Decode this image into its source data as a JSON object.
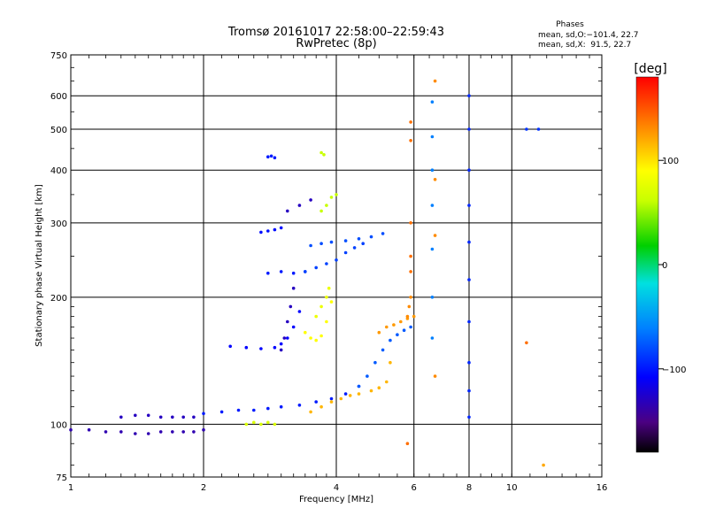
{
  "chart_data": {
    "type": "scatter",
    "title_line1": "Tromsø 20161017 22:58:00–22:59:43",
    "title_line2": "RwPretec (8p)",
    "xlabel": "Frequency [MHz]",
    "ylabel": "Stationary phase Virtual Height [km]",
    "x_scale": "log2",
    "y_scale": "log",
    "xlim": [
      1,
      16
    ],
    "ylim": [
      75,
      750
    ],
    "x_ticks": [
      1,
      2,
      4,
      6,
      8,
      10,
      16
    ],
    "x_tick_labels": [
      "1",
      "2",
      "4",
      "6",
      "8",
      "10",
      "16"
    ],
    "y_ticks": [
      75,
      100,
      200,
      300,
      400,
      500,
      600,
      750
    ],
    "y_tick_labels": [
      "75",
      "100",
      "200",
      "300",
      "400",
      "500",
      "600",
      "750"
    ],
    "grid": true,
    "legend": {
      "title": "Phases",
      "line1": "mean, sd,O:−101.4, 22.7",
      "line2": "mean, sd,X:  91.5, 22.7"
    },
    "colorbar": {
      "label": "[deg]",
      "range": [
        -180,
        180
      ],
      "ticks": [
        100,
        0,
        -100
      ],
      "tick_labels": [
        "100",
        "0",
        "−100"
      ]
    },
    "traces": [
      {
        "x": [
          1.0,
          1.1,
          1.2,
          1.3,
          1.4,
          1.5,
          1.6,
          1.7,
          1.8,
          1.9,
          2.0
        ],
        "y": [
          97,
          97,
          96,
          96,
          95,
          95,
          96,
          96,
          96,
          96,
          97
        ],
        "phase": -135
      },
      {
        "x": [
          1.3,
          1.4,
          1.5,
          1.6,
          1.7,
          1.8,
          1.9
        ],
        "y": [
          104,
          105,
          105,
          104,
          104,
          104,
          104
        ],
        "phase": -130
      },
      {
        "x": [
          2.0,
          2.2,
          2.4,
          2.6,
          2.8,
          3.0,
          3.3,
          3.6,
          3.9,
          4.2,
          4.5
        ],
        "y": [
          106,
          107,
          108,
          108,
          109,
          110,
          111,
          113,
          115,
          118,
          123
        ],
        "phase": -100
      },
      {
        "x": [
          4.5,
          4.7,
          4.9,
          5.1,
          5.3,
          5.5,
          5.7,
          5.9
        ],
        "y": [
          123,
          130,
          140,
          150,
          158,
          163,
          167,
          170
        ],
        "phase": -75
      },
      {
        "x": [
          3.5,
          3.7,
          3.9,
          4.1,
          4.3,
          4.5,
          4.8,
          5.0,
          5.2,
          5.3
        ],
        "y": [
          107,
          110,
          113,
          115,
          117,
          118,
          120,
          122,
          126,
          140
        ],
        "phase": 115
      },
      {
        "x": [
          5.0,
          5.2,
          5.4,
          5.6,
          5.8,
          6.0
        ],
        "y": [
          165,
          170,
          172,
          175,
          178,
          180
        ],
        "phase": 125
      },
      {
        "x": [
          2.3,
          2.5,
          2.7,
          2.9,
          3.0,
          3.1,
          3.2,
          3.3
        ],
        "y": [
          153,
          152,
          151,
          152,
          155,
          160,
          170,
          185
        ],
        "phase": -110
      },
      {
        "x": [
          3.0,
          3.05,
          3.1,
          3.15,
          3.2
        ],
        "y": [
          150,
          160,
          175,
          190,
          210
        ],
        "phase": -130
      },
      {
        "x": [
          3.4,
          3.5,
          3.6,
          3.7,
          3.8,
          3.9
        ],
        "y": [
          165,
          160,
          158,
          162,
          175,
          195
        ],
        "phase": 90
      },
      {
        "x": [
          3.6,
          3.7,
          3.8,
          3.85
        ],
        "y": [
          180,
          190,
          200,
          210
        ],
        "phase": 80
      },
      {
        "x": [
          2.7,
          2.8,
          2.9,
          3.0
        ],
        "y": [
          285,
          287,
          289,
          292
        ],
        "phase": -105
      },
      {
        "x": [
          2.8,
          3.0,
          3.2,
          3.4
        ],
        "y": [
          228,
          230,
          228,
          230
        ],
        "phase": -100
      },
      {
        "x": [
          3.4,
          3.6,
          3.8,
          4.0,
          4.2,
          4.4,
          4.6
        ],
        "y": [
          230,
          235,
          240,
          245,
          255,
          262,
          268
        ],
        "phase": -85
      },
      {
        "x": [
          3.5,
          3.7,
          3.9,
          4.2,
          4.5,
          4.8,
          5.1
        ],
        "y": [
          265,
          268,
          270,
          272,
          275,
          278,
          283
        ],
        "phase": -80
      },
      {
        "x": [
          3.7,
          3.8,
          3.9,
          4.0
        ],
        "y": [
          320,
          330,
          345,
          350
        ],
        "phase": 60
      },
      {
        "x": [
          3.1,
          3.3,
          3.5
        ],
        "y": [
          320,
          330,
          340
        ],
        "phase": -130
      },
      {
        "x": [
          2.8,
          2.85,
          2.9
        ],
        "y": [
          430,
          432,
          428
        ],
        "phase": -100
      },
      {
        "x": [
          3.7,
          3.75
        ],
        "y": [
          440,
          435
        ],
        "phase": 60
      },
      {
        "x": [
          2.5,
          2.6,
          2.7,
          2.8,
          2.9
        ],
        "y": [
          100,
          101,
          100,
          101,
          100
        ],
        "phase": 70
      },
      {
        "x": [
          5.8,
          5.85,
          5.9
        ],
        "y": [
          180,
          190,
          200
        ],
        "phase": 130
      },
      {
        "x": [
          5.9,
          5.9,
          5.9,
          5.9,
          5.9
        ],
        "y": [
          470,
          520,
          300,
          250,
          230
        ],
        "phase": 140
      },
      {
        "x": [
          6.6,
          6.6,
          6.6,
          6.6,
          6.6,
          6.6,
          6.6
        ],
        "y": [
          160,
          200,
          260,
          330,
          400,
          480,
          580
        ],
        "phase": -60
      },
      {
        "x": [
          6.7,
          6.7,
          6.7,
          6.7
        ],
        "y": [
          130,
          280,
          380,
          650
        ],
        "phase": 130
      },
      {
        "x": [
          8.0,
          8.0,
          8.0,
          8.0,
          8.0,
          8.0,
          8.0,
          8.0,
          8.0,
          8.0
        ],
        "y": [
          104,
          120,
          140,
          175,
          220,
          270,
          330,
          400,
          500,
          600
        ],
        "phase": -95
      },
      {
        "x": [
          10.8,
          11.5
        ],
        "y": [
          500,
          500
        ],
        "phase": -90
      },
      {
        "x": [
          10.8
        ],
        "y": [
          156
        ],
        "phase": 140
      },
      {
        "x": [
          11.8
        ],
        "y": [
          80
        ],
        "phase": 120
      },
      {
        "x": [
          5.8
        ],
        "y": [
          90
        ],
        "phase": 140
      }
    ]
  }
}
